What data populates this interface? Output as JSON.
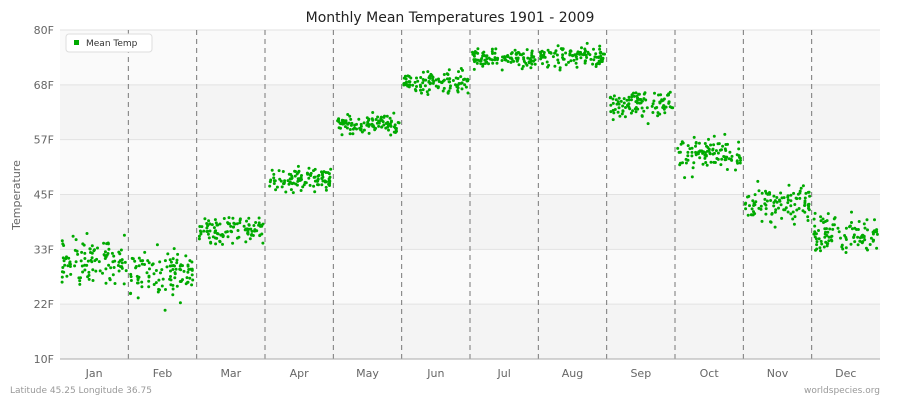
{
  "chart_data": {
    "type": "scatter",
    "title": "Monthly Mean Temperatures 1901 - 2009",
    "ylabel": "Temperature",
    "xlabel": "",
    "ylim": [
      10,
      80
    ],
    "y_ticks": [
      "10F",
      "22F",
      "33F",
      "45F",
      "57F",
      "68F",
      "80F"
    ],
    "y_tick_values": [
      10,
      21.67,
      33.33,
      45,
      56.67,
      68.33,
      80
    ],
    "categories": [
      "Jan",
      "Feb",
      "Mar",
      "Apr",
      "May",
      "Jun",
      "Jul",
      "Aug",
      "Sep",
      "Oct",
      "Nov",
      "Dec"
    ],
    "grid": true,
    "legend_position": "top-left",
    "series": [
      {
        "name": "Mean Temp",
        "color": "#00aa00",
        "points_per_category": 109,
        "approx_range_per_month": [
          {
            "month": "Jan",
            "min": 18,
            "max": 43
          },
          {
            "month": "Feb",
            "min": 16,
            "max": 41
          },
          {
            "month": "Mar",
            "min": 30,
            "max": 45
          },
          {
            "month": "Apr",
            "min": 42,
            "max": 54
          },
          {
            "month": "May",
            "min": 55,
            "max": 65
          },
          {
            "month": "Jun",
            "min": 64,
            "max": 74
          },
          {
            "month": "Jul",
            "min": 69,
            "max": 79
          },
          {
            "month": "Aug",
            "min": 69,
            "max": 80
          },
          {
            "month": "Sep",
            "min": 58,
            "max": 71
          },
          {
            "month": "Oct",
            "min": 45,
            "max": 62
          },
          {
            "month": "Nov",
            "min": 34,
            "max": 52
          },
          {
            "month": "Dec",
            "min": 27,
            "max": 46
          }
        ]
      }
    ],
    "footer_left": "Latitude 45.25 Longitude 36.75",
    "footer_right": "worldspecies.org"
  }
}
